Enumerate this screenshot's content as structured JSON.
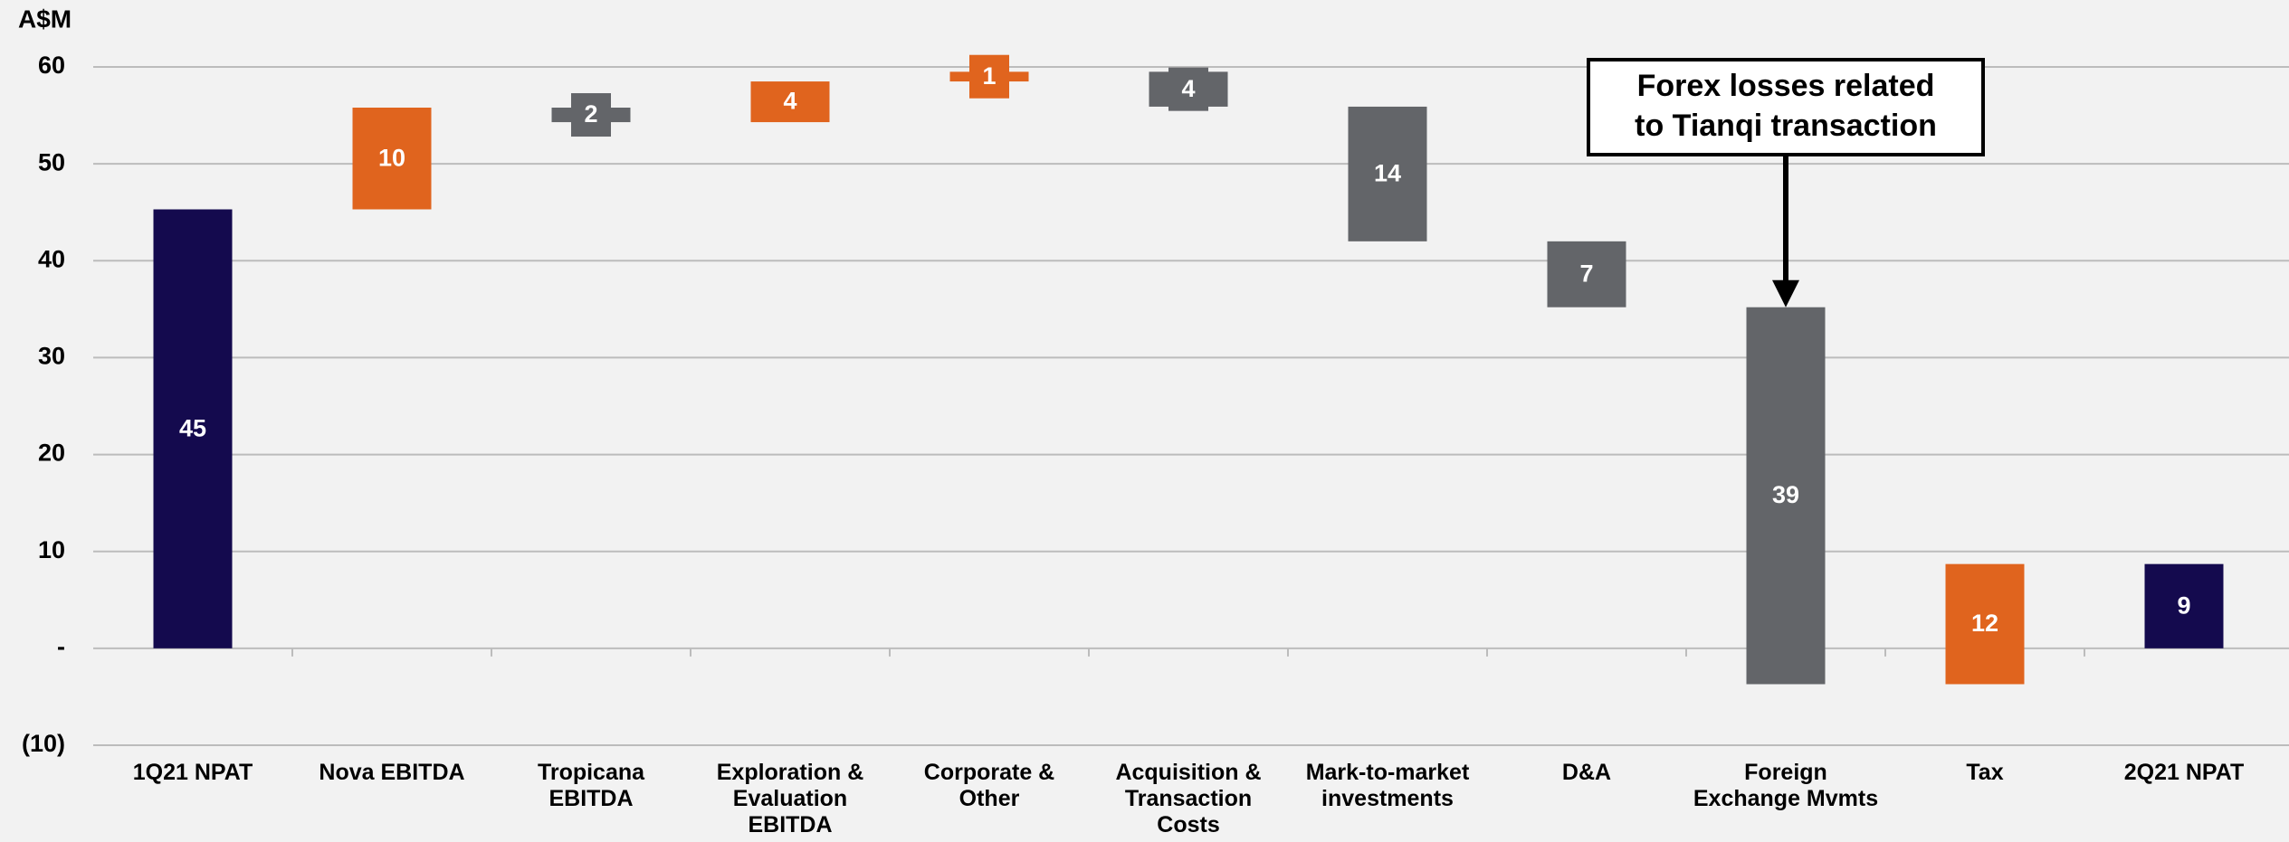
{
  "chart_data": {
    "type": "waterfall",
    "y_axis_label": "A$M",
    "categories": [
      "1Q21 NPAT",
      "Nova EBITDA",
      "Tropicana EBITDA",
      "Exploration & Evaluation EBITDA",
      "Corporate & Other",
      "Acquisition & Transaction Costs",
      "Mark-to-market investments",
      "D&A",
      "Foreign Exchange Mvmts",
      "Tax",
      "2Q21 NPAT"
    ],
    "measures": [
      "absolute",
      "relative",
      "relative",
      "relative",
      "relative",
      "relative",
      "relative",
      "relative",
      "relative",
      "relative",
      "total"
    ],
    "values": [
      45.3,
      10.5,
      -1.5,
      4.2,
      1.0,
      -3.6,
      -13.9,
      -6.8,
      -38.9,
      12.4,
      8.7
    ],
    "value_labels": [
      "45",
      "10",
      "2",
      "4",
      "1",
      "4",
      "14",
      "7",
      "39",
      "12",
      "9"
    ],
    "total_color": "#140a4e",
    "increase_color": "#e0641e",
    "decrease_color": "#636569",
    "ylim": [
      -10,
      60
    ],
    "yticks": [
      {
        "value": -10,
        "label": "(10)"
      },
      {
        "value": 0,
        "label": "-"
      },
      10,
      20,
      30,
      40,
      50,
      60
    ],
    "grid": true,
    "annotation": {
      "text": [
        "Forex losses related",
        "to Tianqi transaction"
      ],
      "category": 8
    }
  }
}
